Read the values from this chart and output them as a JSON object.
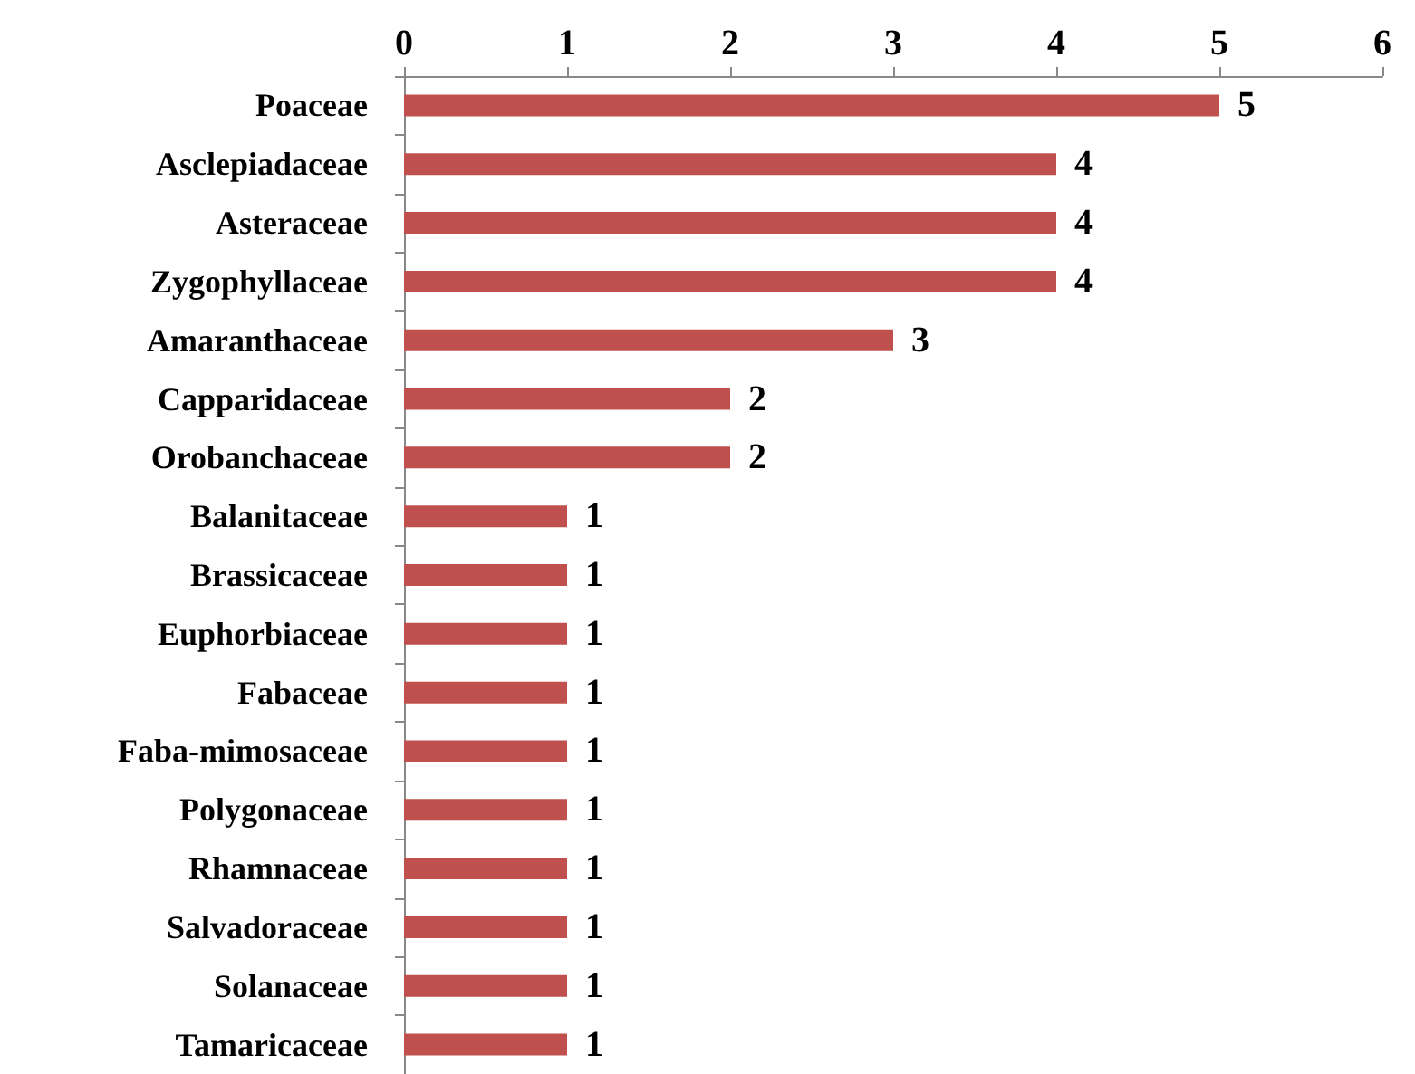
{
  "chart_data": {
    "type": "bar",
    "orientation": "horizontal",
    "categories": [
      "Poaceae",
      "Asclepiadaceae",
      "Asteraceae",
      "Zygophyllaceae",
      "Amaranthaceae",
      "Capparidaceae",
      "Orobanchaceae",
      "Balanitaceae",
      "Brassicaceae",
      "Euphorbiaceae",
      "Fabaceae",
      "Faba-mimosaceae",
      "Polygonaceae",
      "Rhamnaceae",
      "Salvadoraceae",
      "Solanaceae",
      "Tamaricaceae"
    ],
    "values": [
      5,
      4,
      4,
      4,
      3,
      2,
      2,
      1,
      1,
      1,
      1,
      1,
      1,
      1,
      1,
      1,
      1
    ],
    "color": "#c0504d",
    "xlim": [
      0,
      6
    ],
    "xticks": [
      0,
      1,
      2,
      3,
      4,
      5,
      6
    ],
    "data_labels": true
  }
}
